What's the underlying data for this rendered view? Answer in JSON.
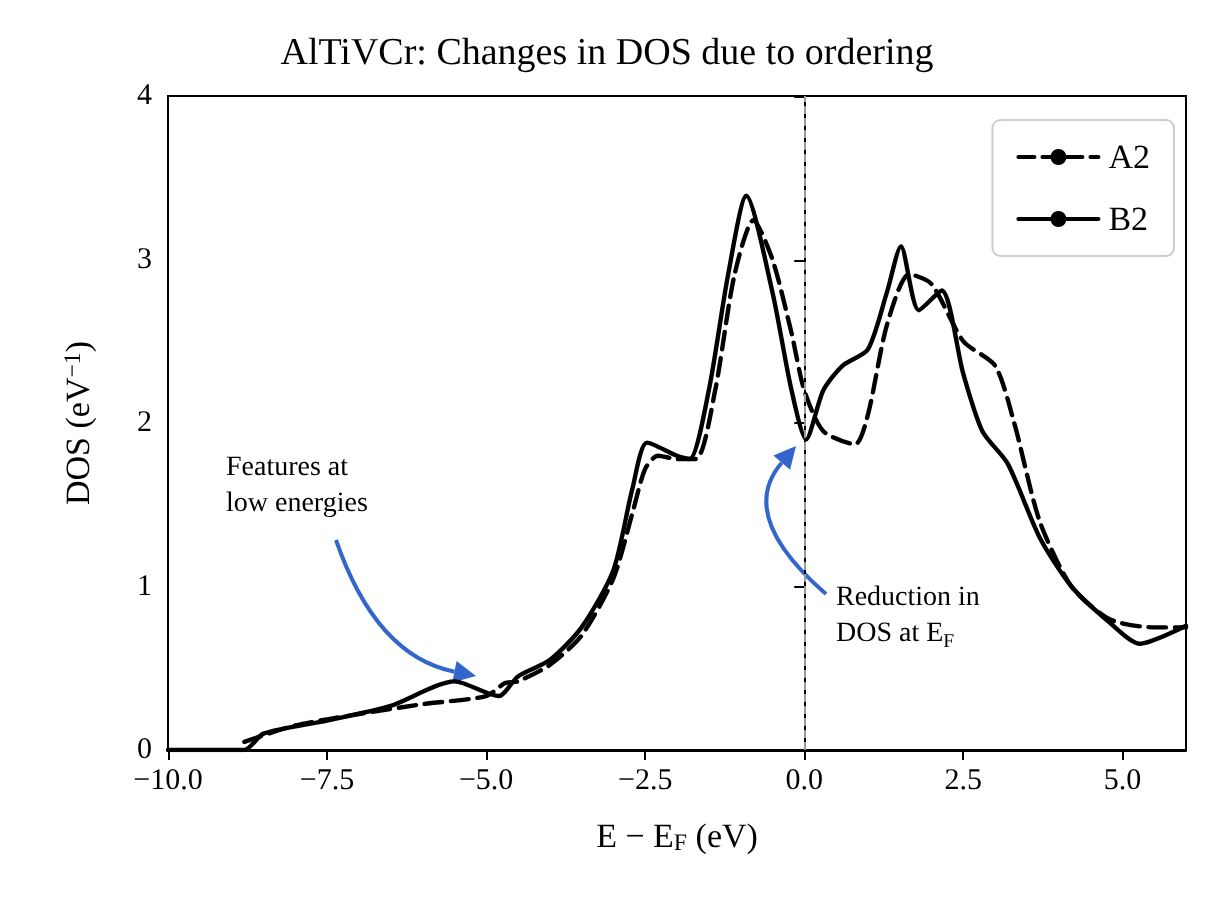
{
  "chart_data": {
    "type": "line",
    "title": "AlTiVCr: Changes in DOS due to ordering",
    "xlabel": "E − E$_{F}$ (eV)",
    "ylabel": "DOS (eV$^{−1}$)",
    "xlim": [
      -10,
      6
    ],
    "ylim": [
      0,
      4
    ],
    "xticks": [
      {
        "value": -10,
        "label": "−10.0"
      },
      {
        "value": -7.5,
        "label": "−7.5"
      },
      {
        "value": -5,
        "label": "−5.0"
      },
      {
        "value": -2.5,
        "label": "−2.5"
      },
      {
        "value": 0,
        "label": "0.0"
      },
      {
        "value": 2.5,
        "label": "2.5"
      },
      {
        "value": 5,
        "label": "5.0"
      }
    ],
    "yticks": [
      0,
      1,
      2,
      3,
      4
    ],
    "grid": false,
    "legend": "top right",
    "marker": "none",
    "ref_lines": [
      {
        "axis": "x",
        "value": 0,
        "color": "#999999",
        "line_style": "dashed"
      }
    ],
    "annotations": [
      "Features at\nlow energies",
      "Reduction in\nDOS at E$_{F}$"
    ],
    "series": [
      {
        "name": "A2",
        "color": "#000000",
        "line_style": "dashed",
        "x": [
          -8.8,
          -8,
          -7,
          -6,
          -5,
          -4.7,
          -4.5,
          -4,
          -3.5,
          -3,
          -2.7,
          -2.5,
          -2.3,
          -2,
          -1.7,
          -1.4,
          -1.1,
          -0.8,
          -0.5,
          -0.2,
          0,
          0.3,
          0.8,
          1,
          1.3,
          1.65,
          2,
          2.5,
          3,
          3.3,
          3.7,
          4.2,
          4.8,
          5.5,
          6
        ],
        "values": [
          0.05,
          0.15,
          0.22,
          0.28,
          0.33,
          0.41,
          0.42,
          0.52,
          0.7,
          1.05,
          1.45,
          1.72,
          1.8,
          1.78,
          1.78,
          2.2,
          2.9,
          3.24,
          3,
          2.55,
          2.2,
          1.95,
          1.87,
          2.05,
          2.6,
          2.91,
          2.85,
          2.5,
          2.35,
          2,
          1.4,
          1,
          0.8,
          0.75,
          0.75
        ]
      },
      {
        "name": "B2",
        "color": "#000000",
        "line_style": "solid",
        "x": [
          -10,
          -8.8,
          -8.5,
          -7.5,
          -6.5,
          -5.5,
          -4.8,
          -4.5,
          -4,
          -3.5,
          -3,
          -2.7,
          -2.47,
          -2,
          -1.8,
          -1.5,
          -1.2,
          -0.91,
          -0.5,
          -0.2,
          0.03,
          0.3,
          0.6,
          1,
          1.3,
          1.52,
          1.8,
          2.16,
          2.5,
          2.8,
          3.2,
          3.7,
          4.2,
          4.8,
          5.27,
          6
        ],
        "values": [
          0,
          0,
          0.1,
          0.18,
          0.27,
          0.42,
          0.33,
          0.45,
          0.55,
          0.75,
          1.1,
          1.6,
          1.88,
          1.8,
          1.78,
          2.2,
          2.9,
          3.39,
          2.8,
          2.2,
          1.9,
          2.2,
          2.35,
          2.45,
          2.8,
          3.08,
          2.69,
          2.81,
          2.3,
          1.95,
          1.75,
          1.3,
          1,
          0.78,
          0.65,
          0.76
        ]
      }
    ]
  }
}
